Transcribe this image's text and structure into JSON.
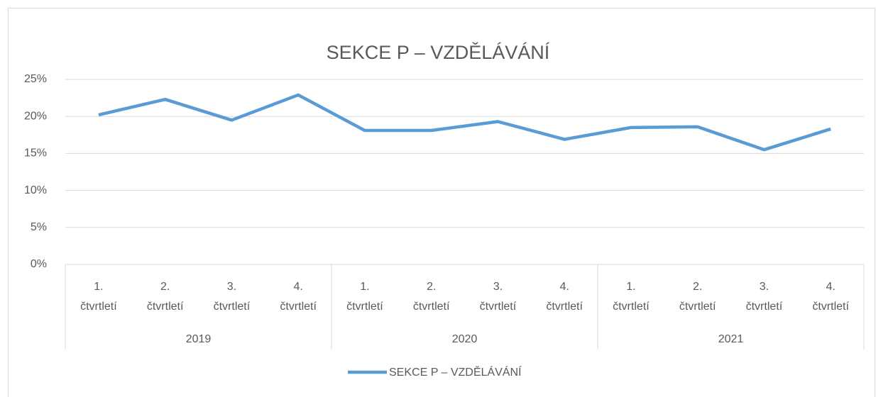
{
  "chart_data": {
    "type": "line",
    "title": "SEKCE P – VZDĚLÁVÁNÍ",
    "categories": [
      "1. čtvrtletí",
      "2. čtvrtletí",
      "3. čtvrtletí",
      "4. čtvrtletí",
      "1. čtvrtletí",
      "2. čtvrtletí",
      "3. čtvrtletí",
      "4. čtvrtletí",
      "1. čtvrtletí",
      "2. čtvrtletí",
      "3. čtvrtletí",
      "4. čtvrtletí"
    ],
    "groups": [
      "2019",
      "2020",
      "2021"
    ],
    "series": [
      {
        "name": "SEKCE P – VZDĚLÁVÁNÍ",
        "color": "#5b9bd5",
        "values": [
          20.2,
          22.3,
          19.5,
          22.9,
          18.1,
          18.1,
          19.3,
          16.9,
          18.5,
          18.6,
          15.5,
          18.3
        ]
      }
    ],
    "ylim": [
      0,
      25
    ],
    "yticks": [
      {
        "value": 0,
        "label": "0%"
      },
      {
        "value": 5,
        "label": "5%"
      },
      {
        "value": 10,
        "label": "10%"
      },
      {
        "value": 15,
        "label": "15%"
      },
      {
        "value": 20,
        "label": "20%"
      },
      {
        "value": 25,
        "label": "25%"
      }
    ],
    "grid": true,
    "legend": "bottom"
  }
}
